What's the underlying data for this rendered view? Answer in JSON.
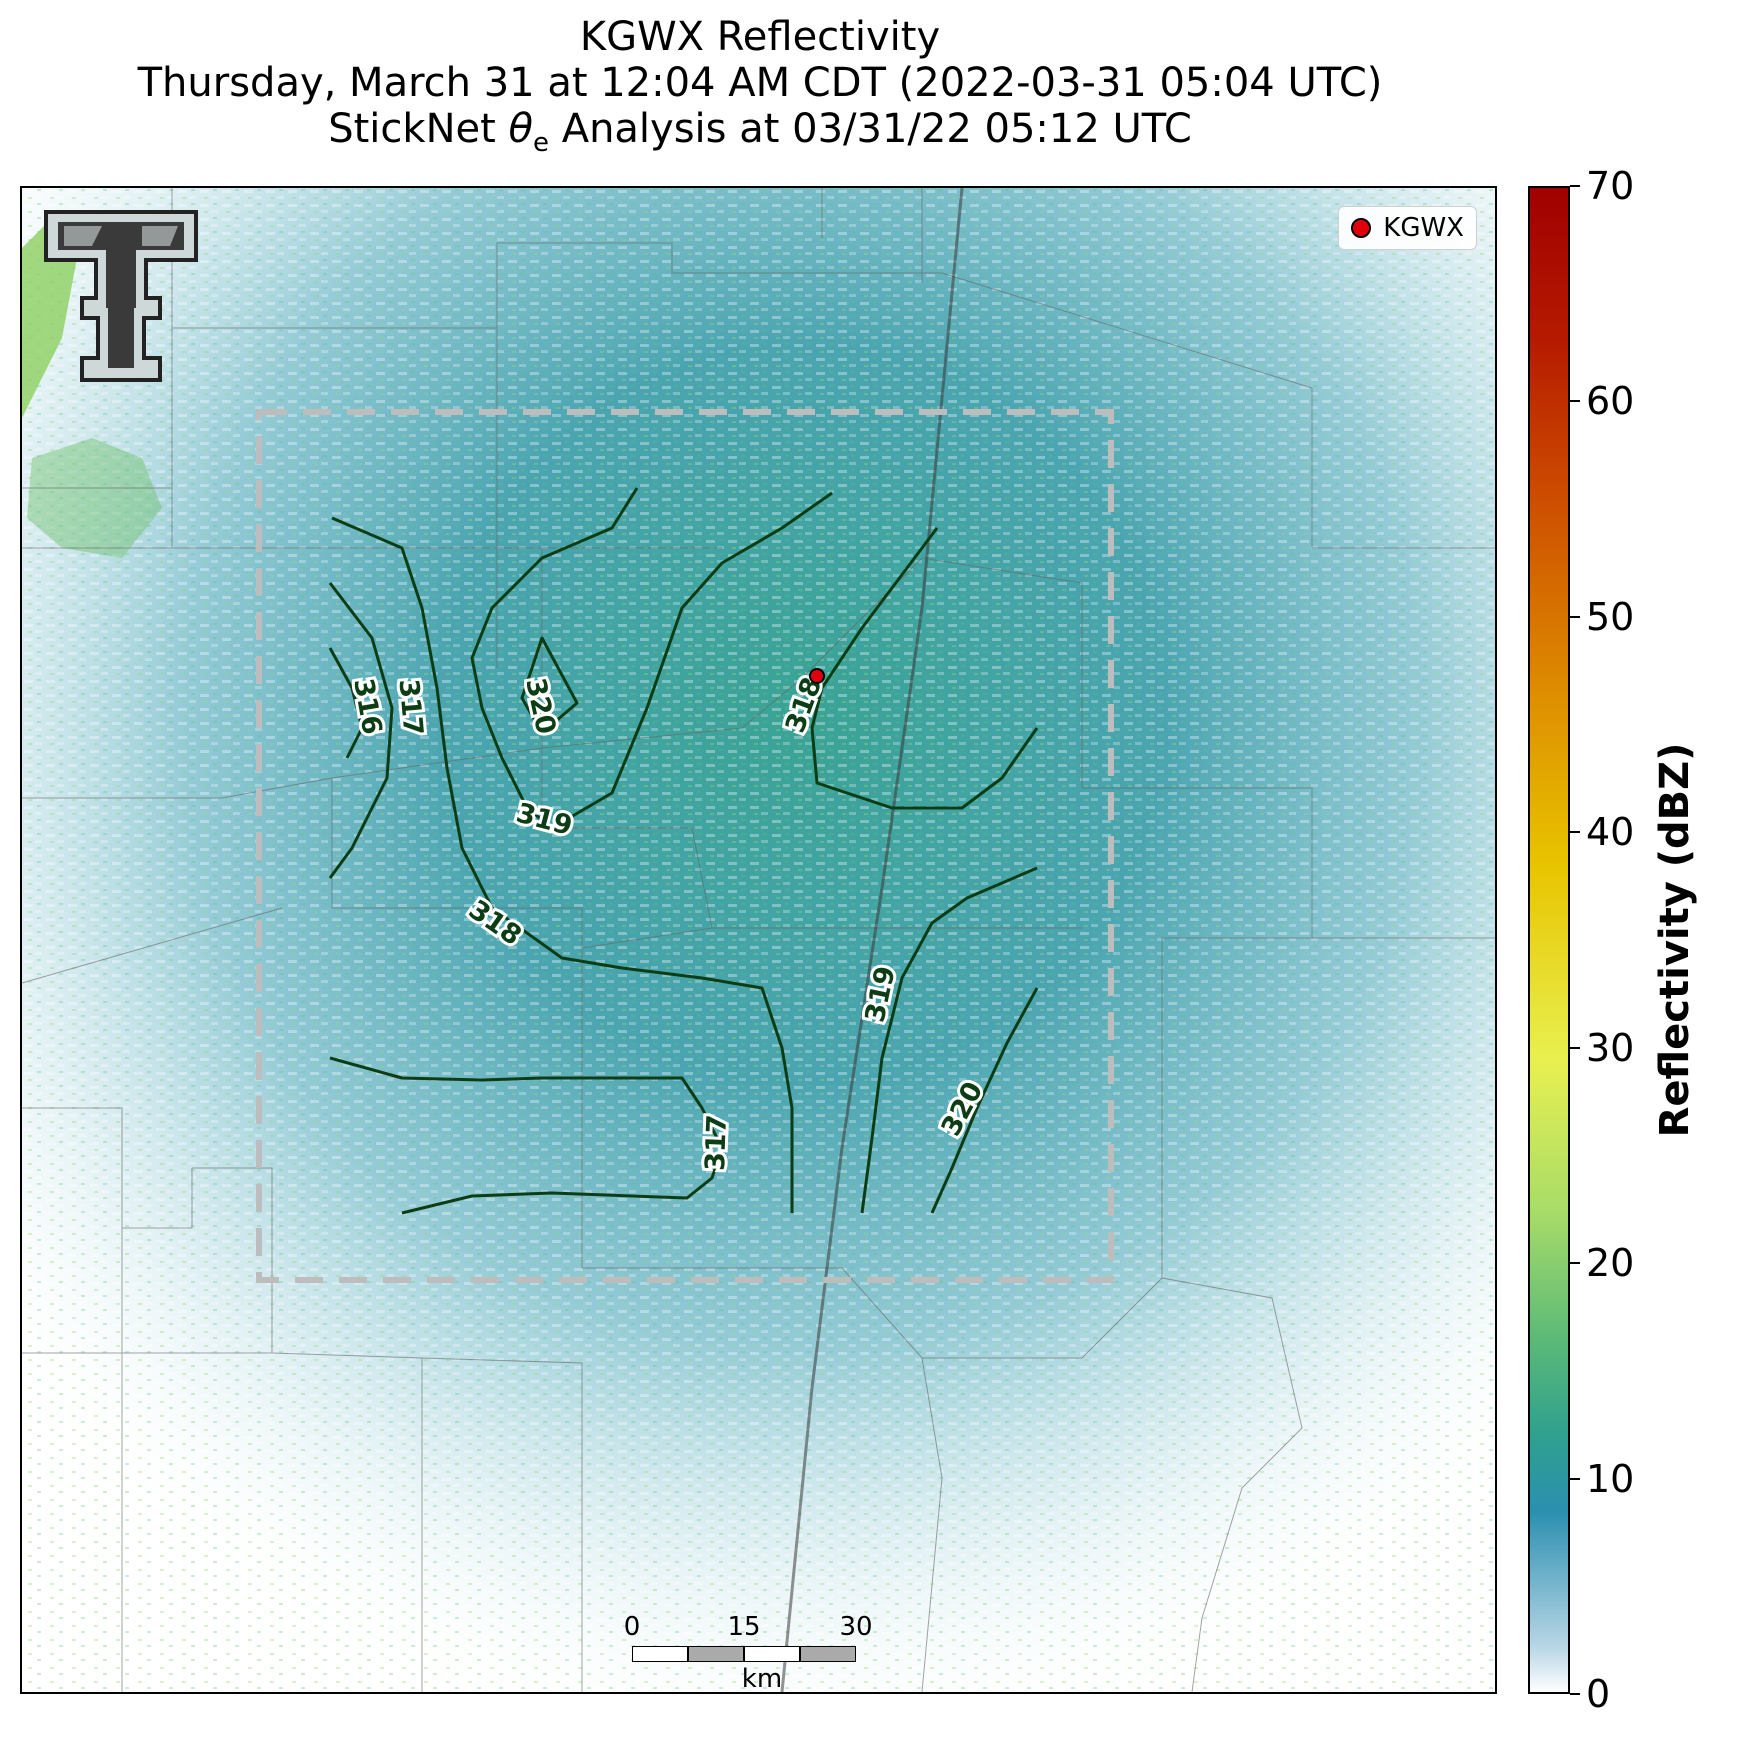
{
  "title": {
    "line1": "KGWX Reflectivity",
    "line2": "Thursday, March 31 at 12:04 AM CDT (2022-03-31 05:04 UTC)",
    "line3_prefix": "StickNet ",
    "line3_symbol": "θ",
    "line3_sub": "e",
    "line3_suffix": " Analysis at 03/31/22 05:12 UTC"
  },
  "legend": {
    "station": "KGWX"
  },
  "colorbar": {
    "label": "Reflectivity (dBZ)",
    "ticks": [
      "0",
      "10",
      "20",
      "30",
      "40",
      "50",
      "60",
      "70"
    ],
    "range": [
      0,
      70
    ]
  },
  "scalebar": {
    "ticks": [
      "0",
      "15",
      "30"
    ],
    "unit": "km"
  },
  "contours": [
    {
      "label": "316"
    },
    {
      "label": "317"
    },
    {
      "label": "320"
    },
    {
      "label": "319"
    },
    {
      "label": "318"
    },
    {
      "label": "318"
    },
    {
      "label": "319"
    },
    {
      "label": "317"
    },
    {
      "label": "320"
    }
  ],
  "colors": {
    "contour": "#0d3d14",
    "station_marker": "#e0000b",
    "analysis_box": "#bdbdbd"
  }
}
